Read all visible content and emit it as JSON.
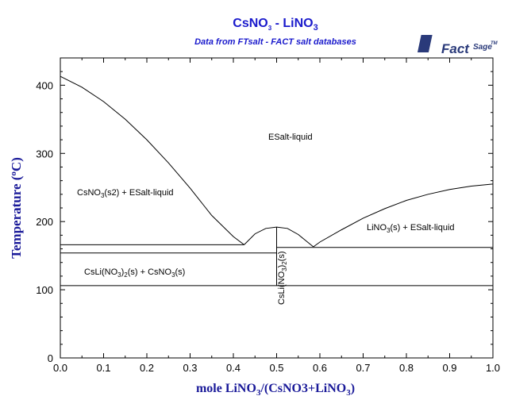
{
  "colors": {
    "title": "#1a1acc",
    "axis_title": "#1a1a99",
    "logo": "#2a3a7a"
  },
  "logo": {
    "part1": "Fact",
    "part2": "Sage",
    "tm": "TM"
  },
  "chart_data": {
    "type": "line",
    "title_main": "CsNO",
    "title_sub": "3",
    "title_rest": " - LiNO",
    "title_sub2": "3",
    "subtitle": "Data from FTsalt - FACT salt databases",
    "xlabel_a": "mole LiNO",
    "xlabel_sub": "3",
    "xlabel_b": "/(CsNO3+LiNO",
    "xlabel_sub2": "3",
    "xlabel_c": ")",
    "ylabel_a": "Temperature (",
    "ylabel_deg": "o",
    "ylabel_b": "C)",
    "xlim": [
      0,
      1
    ],
    "ylim": [
      0,
      440
    ],
    "xticks": [
      "0.0",
      "0.1",
      "0.2",
      "0.3",
      "0.4",
      "0.5",
      "0.6",
      "0.7",
      "0.8",
      "0.9",
      "1.0"
    ],
    "yticks": [
      "0",
      "100",
      "200",
      "300",
      "400"
    ],
    "series": [
      {
        "x": [
          0.0,
          0.05,
          0.1,
          0.15,
          0.2,
          0.25,
          0.3,
          0.35,
          0.4,
          0.425
        ],
        "y": [
          413,
          397,
          376,
          350,
          320,
          286,
          249,
          209,
          178,
          166
        ]
      },
      {
        "x": [
          0.425,
          0.45,
          0.475,
          0.5,
          0.525,
          0.55,
          0.585
        ],
        "y": [
          166,
          182,
          190,
          192,
          190,
          181,
          163
        ]
      },
      {
        "x": [
          0.585,
          0.6,
          0.65,
          0.7,
          0.75,
          0.8,
          0.85,
          0.9,
          0.95,
          1.0
        ],
        "y": [
          163,
          170,
          188,
          205,
          219,
          231,
          240,
          247,
          252,
          255
        ]
      },
      {
        "x": [
          0.0,
          0.425
        ],
        "y": [
          166,
          166
        ]
      },
      {
        "x": [
          0.0,
          0.5
        ],
        "y": [
          154,
          154
        ]
      },
      {
        "x": [
          0.5,
          1.0
        ],
        "y": [
          162,
          162
        ]
      },
      {
        "x": [
          0.0,
          1.0
        ],
        "y": [
          106,
          106
        ]
      },
      {
        "x": [
          0.5,
          0.5
        ],
        "y": [
          106,
          192
        ]
      }
    ],
    "labels": {
      "liquid": "ESalt-liquid",
      "left_a": "CsNO",
      "left_sub": "3",
      "left_b": "(s2) + ESalt-liquid",
      "right_a": "LiNO",
      "right_sub": "3",
      "right_b": "(s) + ESalt-liquid",
      "bottom_a": "CsLi(NO",
      "bottom_sub": "3",
      "bottom_b": ")",
      "bottom_sub2": "2",
      "bottom_c": "(s) + CsNO",
      "bottom_sub3": "3",
      "bottom_d": "(s)",
      "compound_a": "CsLi(NO",
      "compound_sub": "3",
      "compound_b": ")",
      "compound_sub2": "2",
      "compound_c": "(s)"
    }
  }
}
